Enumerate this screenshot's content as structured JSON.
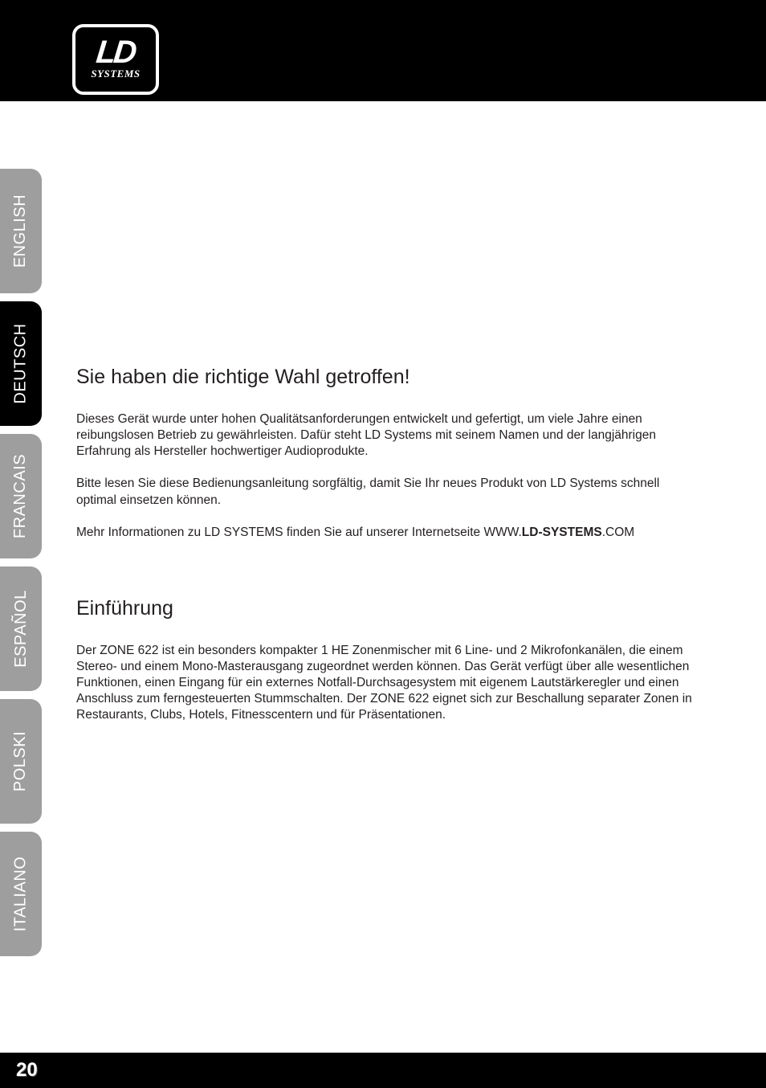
{
  "logo": {
    "main": "LD",
    "sub": "SYSTEMS"
  },
  "tabs": {
    "english": "ENGLISH",
    "deutsch": "DEUTSCH",
    "francais": "FRANCAIS",
    "espanol": "ESPAÑOL",
    "polski": "POLSKI",
    "italiano": "ITALIANO"
  },
  "section1": {
    "title": "Sie haben die richtige Wahl getroffen!",
    "p1": "Dieses Gerät wurde unter hohen Qualitätsanforderungen entwickelt und gefertigt, um viele Jahre einen reibungs­losen Betrieb zu gewährleisten. Dafür steht LD Systems mit seinem Namen und der langjährigen Erfahrung als Hersteller hochwertiger Audioprodukte.",
    "p2": "Bitte lesen Sie diese Bedienungsanleitung sorgfältig, damit Sie Ihr neues Produkt von LD Systems schnell optimal einsetzen können.",
    "p3_pre": "Mehr Informationen zu LD SYSTEMS finden Sie auf unserer Internetseite  WWW.",
    "p3_bold": "LD-SYSTEMS",
    "p3_post": ".COM"
  },
  "section2": {
    "title": "Einführung",
    "p1": "Der ZONE 622 ist ein besonders kompakter 1 HE Zonenmischer mit 6 Line- und 2 Mikrofonkanälen, die einem Stereo- und einem Mono-Masterausgang zugeordnet werden können. Das Gerät verfügt über alle wesentlichen Funktionen, einen Eingang für ein externes Notfall-Durchsagesystem mit eigenem Lautstärkeregler und einen Anschluss zum ferngesteuerten Stummschalten. Der ZONE 622 eignet sich zur Beschallung separater Zonen in Restaurants, Clubs, Hotels, Fitnesscentern und für Präsentationen."
  },
  "page_number": "20",
  "colors": {
    "black": "#000000",
    "white": "#ffffff",
    "tab_inactive": "#9e9e9e",
    "text": "#231f20"
  }
}
